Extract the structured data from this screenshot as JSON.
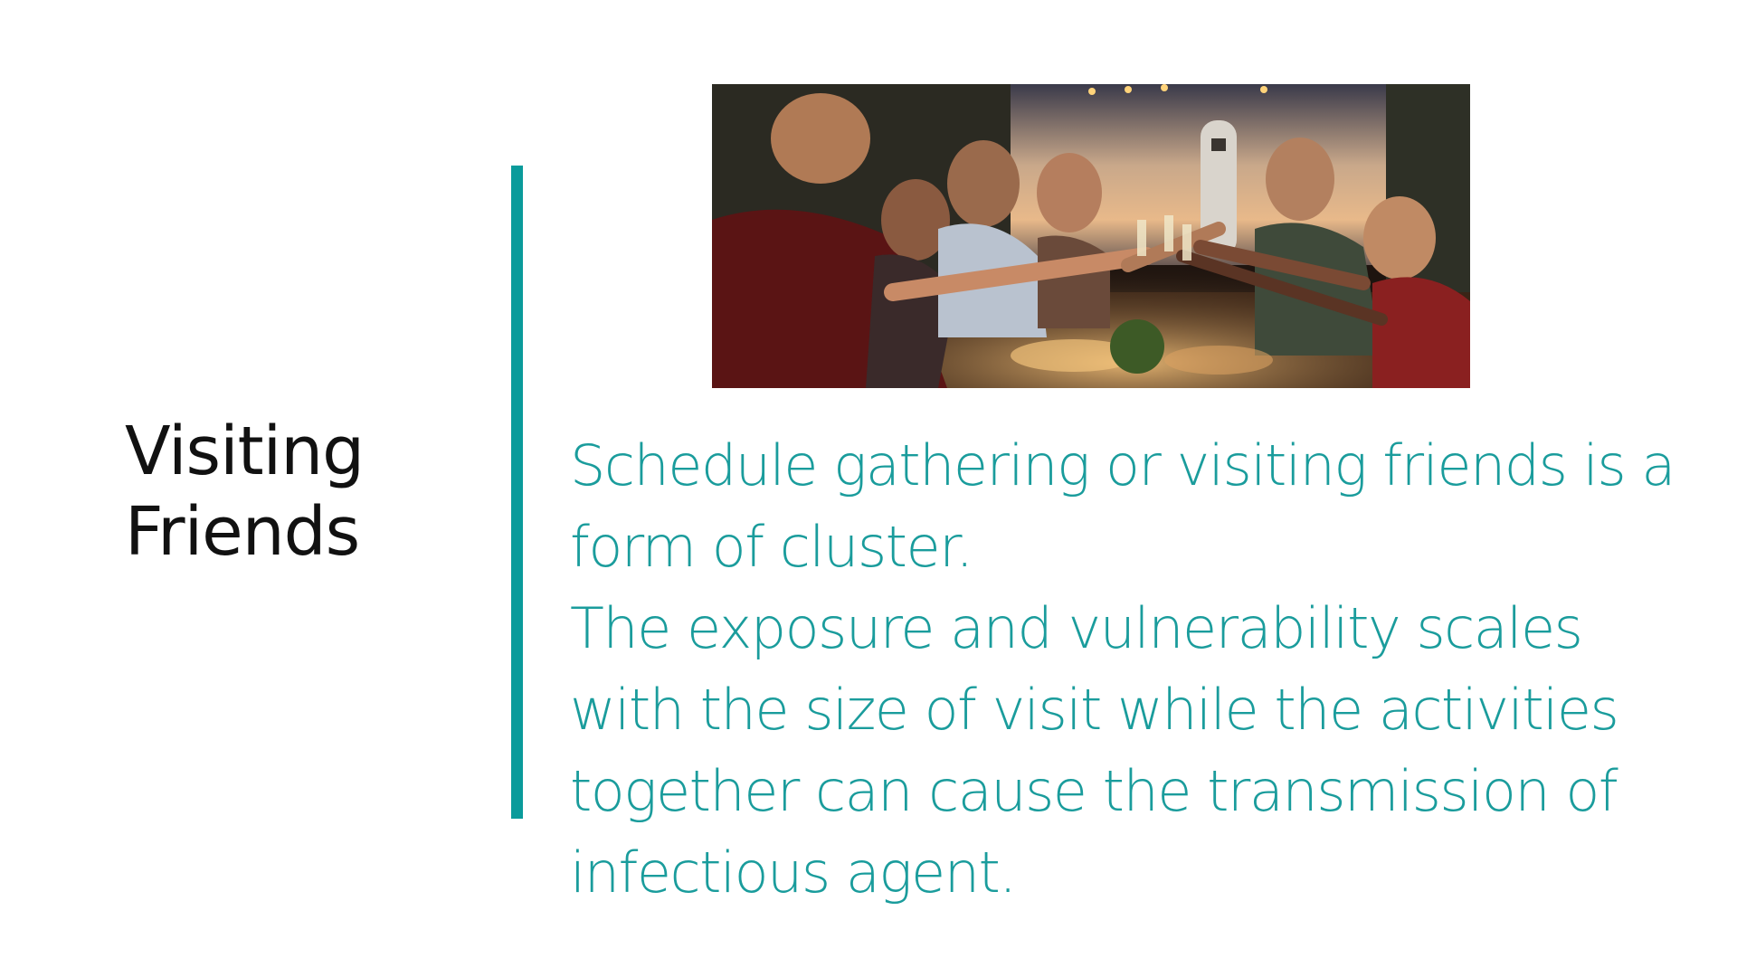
{
  "slide": {
    "title_lines": [
      "Visiting",
      "Friends"
    ],
    "paragraph_1": "Schedule gathering or visiting friends is a form of cluster.",
    "paragraph_2": "The exposure and vulnerability scales with the size of visit while the activities together can cause the transmission of infectious agent."
  },
  "colors": {
    "accent": "#0a9b9b",
    "body_text": "#1a9c9c",
    "title_text": "#111111",
    "background": "#ffffff"
  },
  "icons": {
    "photo": "group-of-friends-toasting-at-outdoor-dinner-photo"
  }
}
